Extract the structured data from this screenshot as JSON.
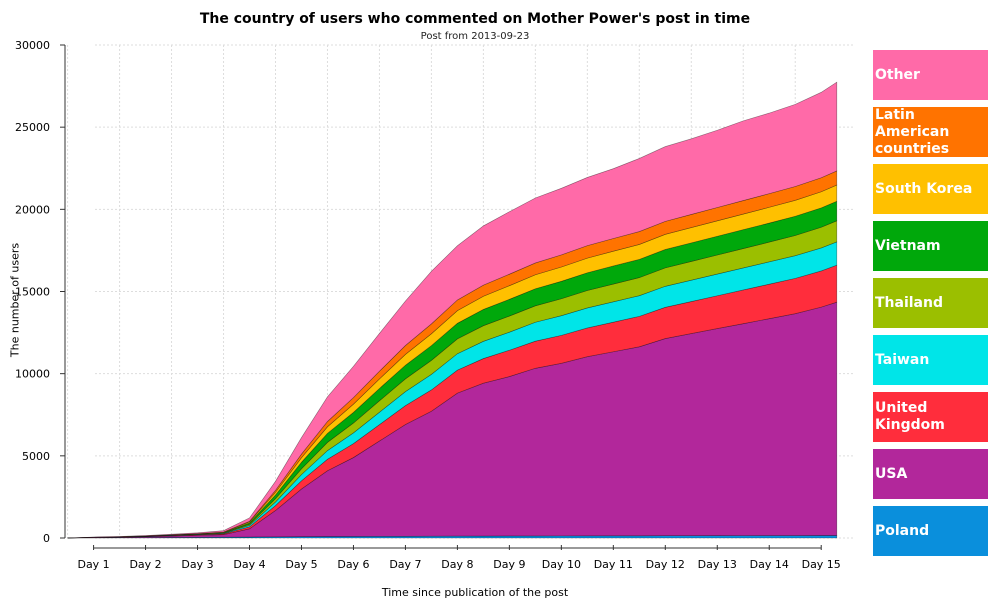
{
  "chart_data": {
    "type": "area",
    "stacked": true,
    "title": "The country of users who commented on Mother Power's post in time",
    "subtitle": "Post from 2013-09-23",
    "xlabel": "Time since publication of the post",
    "ylabel": "The number of users",
    "ylim": [
      0,
      30000
    ],
    "yticks": [
      0,
      5000,
      10000,
      15000,
      20000,
      25000,
      30000
    ],
    "xlim": [
      0.45,
      15.65
    ],
    "xticks": [
      "Day 1",
      "Day 2",
      "Day 3",
      "Day 4",
      "Day 5",
      "Day 6",
      "Day 7",
      "Day 8",
      "Day 9",
      "Day 10",
      "Day 11",
      "Day 12",
      "Day 13",
      "Day 14",
      "Day 15"
    ],
    "grid": true,
    "legend_position": "right",
    "x": [
      0.5,
      1,
      1.5,
      2,
      2.5,
      3,
      3.5,
      4,
      4.5,
      5,
      5.5,
      6,
      6.5,
      7,
      7.5,
      8,
      8.5,
      9,
      9.5,
      10,
      10.5,
      11,
      11.5,
      12,
      12.5,
      13,
      13.5,
      14,
      14.5,
      15,
      15.3
    ],
    "series": [
      {
        "name": "Poland",
        "color": "#0a8fdc",
        "values": [
          0,
          10,
          15,
          20,
          30,
          40,
          50,
          60,
          70,
          80,
          90,
          95,
          100,
          105,
          110,
          115,
          120,
          125,
          128,
          130,
          132,
          134,
          136,
          138,
          140,
          142,
          144,
          146,
          148,
          150,
          150
        ]
      },
      {
        "name": "USA",
        "color": "#b2279b",
        "values": [
          0,
          20,
          30,
          60,
          90,
          120,
          150,
          500,
          1600,
          2900,
          4000,
          4800,
          5800,
          6800,
          7600,
          8700,
          9300,
          9700,
          10200,
          10500,
          10900,
          11200,
          11500,
          12000,
          12300,
          12600,
          12900,
          13200,
          13500,
          13900,
          14200
        ]
      },
      {
        "name": "United Kingdom",
        "color": "#ff2d3c",
        "values": [
          0,
          5,
          10,
          15,
          25,
          35,
          50,
          120,
          300,
          500,
          700,
          850,
          1000,
          1150,
          1300,
          1400,
          1500,
          1600,
          1650,
          1700,
          1750,
          1800,
          1850,
          1900,
          1950,
          2000,
          2050,
          2100,
          2150,
          2200,
          2250
        ]
      },
      {
        "name": "Taiwan",
        "color": "#00e5e8",
        "values": [
          0,
          3,
          5,
          10,
          15,
          20,
          30,
          90,
          220,
          380,
          530,
          650,
          750,
          850,
          950,
          1000,
          1050,
          1100,
          1150,
          1200,
          1220,
          1240,
          1260,
          1280,
          1300,
          1320,
          1340,
          1360,
          1380,
          1400,
          1420
        ]
      },
      {
        "name": "Thailand",
        "color": "#9bbf00",
        "values": [
          0,
          3,
          5,
          8,
          10,
          15,
          25,
          70,
          200,
          350,
          500,
          600,
          700,
          780,
          850,
          900,
          950,
          980,
          1000,
          1030,
          1060,
          1080,
          1100,
          1120,
          1140,
          1160,
          1180,
          1200,
          1230,
          1260,
          1280
        ]
      },
      {
        "name": "Vietnam",
        "color": "#00a80b",
        "values": [
          0,
          3,
          5,
          8,
          10,
          15,
          25,
          80,
          230,
          400,
          550,
          650,
          750,
          830,
          900,
          950,
          990,
          1020,
          1040,
          1060,
          1080,
          1100,
          1110,
          1120,
          1130,
          1140,
          1150,
          1160,
          1170,
          1180,
          1190
        ]
      },
      {
        "name": "South Korea",
        "color": "#ffc000",
        "values": [
          0,
          2,
          4,
          6,
          8,
          12,
          20,
          60,
          160,
          280,
          400,
          500,
          580,
          660,
          720,
          770,
          800,
          830,
          850,
          870,
          890,
          900,
          910,
          920,
          930,
          940,
          950,
          960,
          970,
          980,
          990
        ]
      },
      {
        "name": "Latin American countries",
        "color": "#ff7300",
        "values": [
          0,
          2,
          4,
          5,
          7,
          10,
          15,
          40,
          120,
          220,
          320,
          400,
          470,
          540,
          600,
          650,
          680,
          700,
          720,
          740,
          760,
          770,
          780,
          790,
          800,
          810,
          820,
          830,
          840,
          850,
          860
        ]
      },
      {
        "name": "Other",
        "color": "#ff6aa8",
        "values": [
          0,
          10,
          15,
          20,
          35,
          50,
          80,
          200,
          550,
          1000,
          1500,
          1900,
          2300,
          2700,
          3200,
          3300,
          3600,
          3800,
          3950,
          4050,
          4150,
          4250,
          4450,
          4550,
          4600,
          4700,
          4850,
          4900,
          5000,
          5200,
          5400
        ]
      }
    ]
  }
}
